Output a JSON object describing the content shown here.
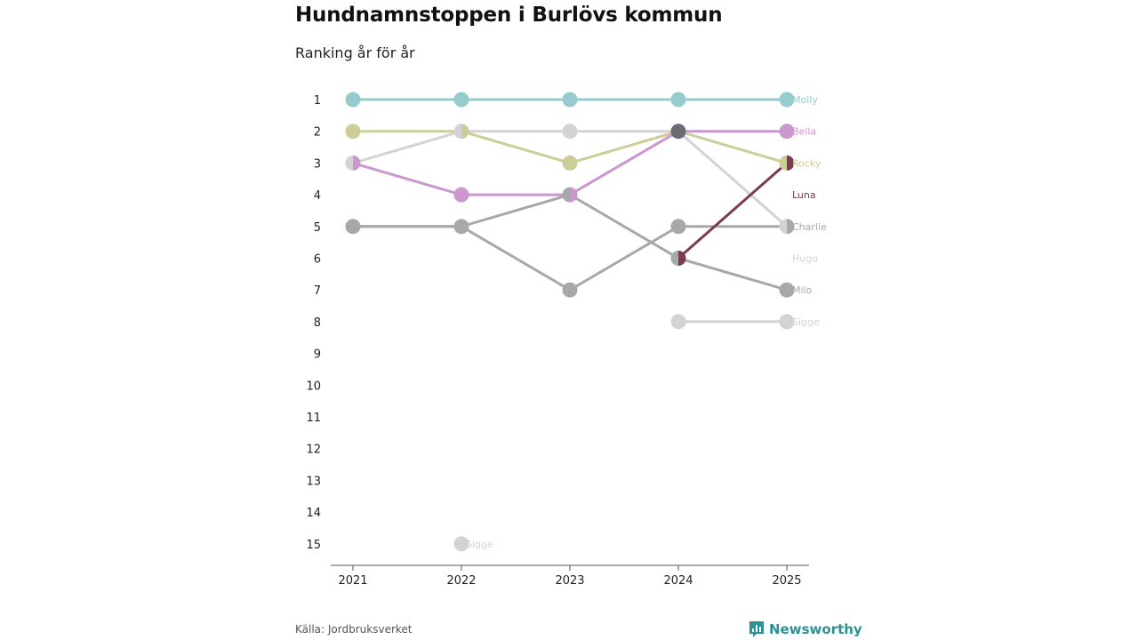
{
  "header": {
    "title": "Hundnamnstoppen i Burlövs kommun",
    "subtitle": "Ranking år för år"
  },
  "footer": {
    "source": "Källa: Jordbruksverket",
    "brand": "Newsworthy",
    "brand_icon": "newsworthy-logo-icon"
  },
  "chart_data": {
    "type": "line",
    "title": "Hundnamnstoppen i Burlövs kommun",
    "subtitle": "Ranking år för år",
    "x": [
      "2021",
      "2022",
      "2023",
      "2024",
      "2025"
    ],
    "y_ticks": [
      "1",
      "2",
      "3",
      "4",
      "5",
      "6",
      "7",
      "8",
      "9",
      "10",
      "11",
      "12",
      "13",
      "14",
      "15"
    ],
    "ylim": [
      1,
      15
    ],
    "y_inverted": true,
    "xlabel": "",
    "ylabel": "",
    "series": [
      {
        "name": "Hugo",
        "color": "#d3d3d3",
        "values": [
          3,
          2,
          2,
          2,
          5
        ],
        "label_rank": 6
      },
      {
        "name": "Sigge",
        "color": "#d3d3d3",
        "values": [
          null,
          15,
          null,
          8,
          8
        ],
        "label_rank": 8,
        "extra_label": {
          "x_index": 1,
          "rank": 15
        }
      },
      {
        "name": "Milo",
        "color": "#a8a8a8",
        "values": [
          5,
          5,
          4,
          6,
          7
        ],
        "label_rank": 7
      },
      {
        "name": "Charlie",
        "color": "#a8a8a8",
        "values": [
          5,
          5,
          7,
          5,
          5
        ],
        "label_rank": 5
      },
      {
        "name": "Rocky",
        "color": "#cdcd9a",
        "values": [
          2,
          2,
          3,
          2,
          3
        ],
        "label_rank": 3
      },
      {
        "name": "Bella",
        "color": "#cc97cf",
        "values": [
          3,
          4,
          4,
          2,
          2
        ],
        "label_rank": 2
      },
      {
        "name": "Luna",
        "color": "#7b3b52",
        "values": [
          null,
          null,
          null,
          6,
          3
        ],
        "label_rank": 4
      },
      {
        "name": "Molly",
        "color": "#96cccd",
        "values": [
          1,
          1,
          1,
          1,
          1
        ],
        "label_rank": 1
      }
    ]
  }
}
